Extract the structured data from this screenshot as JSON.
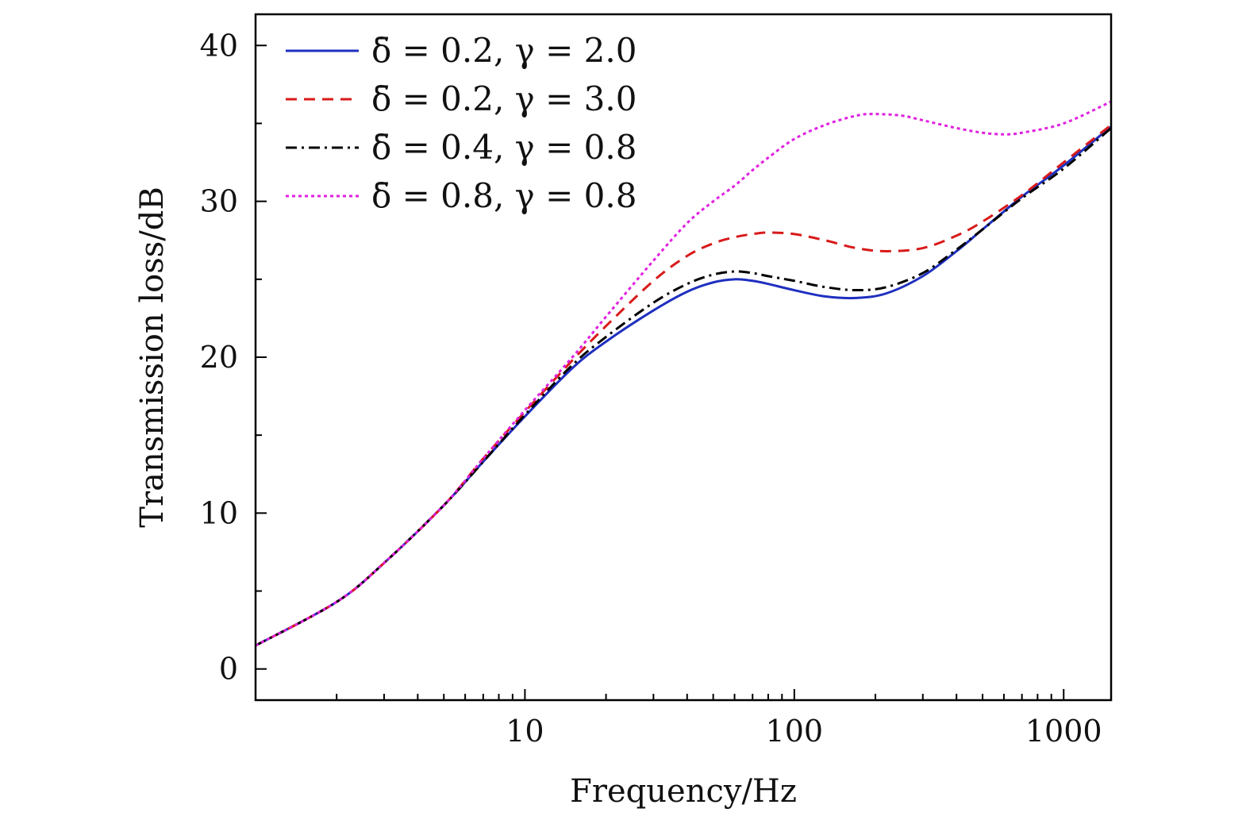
{
  "chart_data": {
    "type": "line",
    "xlabel": "Frequency/Hz",
    "ylabel": "Transmission loss/dB",
    "x_scale": "log",
    "xlim": [
      1,
      1500
    ],
    "ylim": [
      -2,
      42
    ],
    "x_ticks": [
      10,
      100,
      1000
    ],
    "x_tick_labels": [
      "10",
      "100",
      "1000"
    ],
    "y_ticks": [
      0,
      10,
      20,
      30,
      40
    ],
    "y_tick_labels": [
      "0",
      "10",
      "20",
      "30",
      "40"
    ],
    "grid": false,
    "legend_position": "top-left",
    "series": [
      {
        "name": "δ̄ = 0.2,  γ = 2.0",
        "color": "#1f2fbf",
        "dash": "solid",
        "x": [
          1,
          2,
          3,
          5,
          7,
          10,
          15,
          20,
          30,
          40,
          50,
          60,
          70,
          80,
          100,
          130,
          170,
          220,
          300,
          400,
          500,
          700,
          1000,
          1500
        ],
        "y": [
          1.5,
          4.3,
          6.8,
          10.5,
          13.3,
          16.2,
          19.3,
          21.0,
          23.0,
          24.2,
          24.8,
          25.0,
          24.9,
          24.7,
          24.3,
          23.9,
          23.8,
          24.1,
          25.2,
          26.8,
          28.2,
          30.3,
          32.3,
          34.8
        ]
      },
      {
        "name": "δ̄ = 0.2,  γ = 3.0",
        "color": "#d81a1a",
        "dash": "dash",
        "x": [
          1,
          2,
          3,
          5,
          7,
          10,
          15,
          20,
          30,
          40,
          50,
          60,
          70,
          80,
          100,
          130,
          170,
          220,
          300,
          400,
          500,
          700,
          1000,
          1500
        ],
        "y": [
          1.5,
          4.3,
          6.8,
          10.5,
          13.5,
          16.5,
          19.8,
          22.0,
          24.9,
          26.5,
          27.3,
          27.7,
          27.9,
          28.0,
          27.9,
          27.5,
          27.0,
          26.8,
          27.0,
          27.8,
          28.7,
          30.4,
          32.5,
          34.9
        ]
      },
      {
        "name": "δ̄ = 0.4,  γ = 0.8",
        "color": "#000000",
        "dash": "dashdot",
        "x": [
          1,
          2,
          3,
          5,
          7,
          10,
          15,
          20,
          30,
          40,
          50,
          60,
          70,
          80,
          100,
          130,
          170,
          220,
          300,
          400,
          500,
          700,
          1000,
          1500
        ],
        "y": [
          1.5,
          4.3,
          6.8,
          10.5,
          13.3,
          16.3,
          19.5,
          21.3,
          23.5,
          24.7,
          25.3,
          25.5,
          25.4,
          25.2,
          24.9,
          24.5,
          24.3,
          24.5,
          25.4,
          26.9,
          28.2,
          30.2,
          32.1,
          34.7
        ]
      },
      {
        "name": "δ̄ = 0.8,  γ = 0.8",
        "color": "#e020e0",
        "dash": "dot",
        "x": [
          1,
          2,
          3,
          5,
          7,
          10,
          15,
          20,
          30,
          40,
          50,
          60,
          70,
          80,
          100,
          130,
          170,
          200,
          250,
          300,
          400,
          500,
          600,
          700,
          1000,
          1500
        ],
        "y": [
          1.5,
          4.3,
          6.8,
          10.5,
          13.5,
          16.6,
          20.0,
          22.6,
          26.2,
          28.6,
          30.0,
          31.0,
          32.0,
          32.8,
          34.0,
          34.9,
          35.5,
          35.6,
          35.5,
          35.2,
          34.7,
          34.4,
          34.3,
          34.4,
          35.0,
          36.4
        ]
      }
    ]
  }
}
